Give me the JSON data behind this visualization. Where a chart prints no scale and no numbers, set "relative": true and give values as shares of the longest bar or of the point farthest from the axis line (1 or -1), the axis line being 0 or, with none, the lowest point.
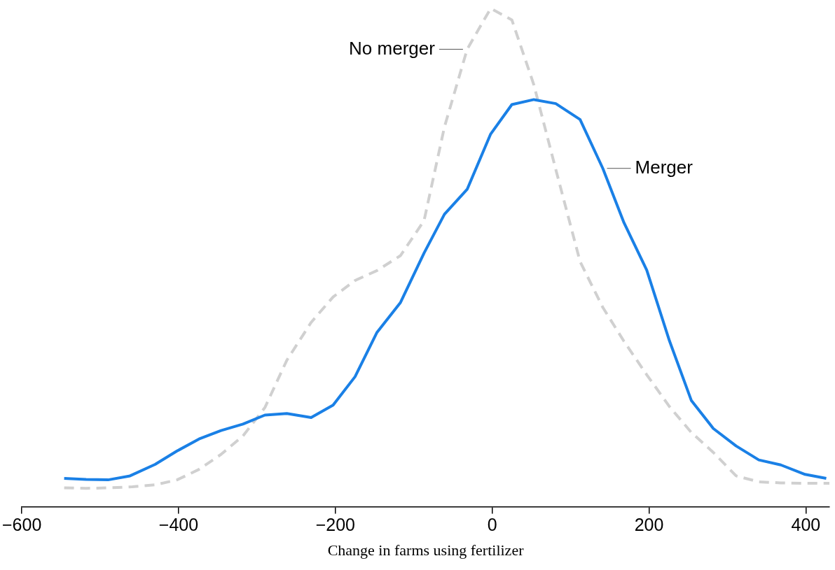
{
  "chart_data": {
    "type": "line",
    "relative": true,
    "xlabel": "Change in farms using fertilizer",
    "xlim": [
      -600,
      430
    ],
    "xticks": [
      {
        "value": -600,
        "label": "−600"
      },
      {
        "value": -400,
        "label": "−400"
      },
      {
        "value": -200,
        "label": "−200"
      },
      0,
      200,
      400
    ],
    "marker": "none",
    "grid": false,
    "legend": false,
    "series": [
      {
        "name": "Merger",
        "color": "#1a80e6",
        "line_style": "solid",
        "x": [
          -546,
          -518,
          -490,
          -462,
          -430,
          -402,
          -374,
          -346,
          -318,
          -290,
          -262,
          -231,
          -203,
          -175,
          -147,
          -117,
          -87,
          -61,
          -32,
          -2,
          25,
          53,
          81,
          112,
          141,
          168,
          197,
          226,
          254,
          282,
          311,
          340,
          368,
          399,
          426
        ],
        "values": [
          0.057,
          0.055,
          0.054,
          0.062,
          0.085,
          0.112,
          0.136,
          0.153,
          0.166,
          0.184,
          0.187,
          0.179,
          0.204,
          0.261,
          0.35,
          0.41,
          0.509,
          0.587,
          0.637,
          0.748,
          0.807,
          0.817,
          0.809,
          0.777,
          0.679,
          0.57,
          0.475,
          0.333,
          0.213,
          0.157,
          0.122,
          0.094,
          0.084,
          0.065,
          0.057
        ]
      },
      {
        "name": "No merger",
        "color": "#d0d0d0",
        "line_style": "dashed",
        "x": [
          -546,
          -518,
          -490,
          -459,
          -430,
          -402,
          -374,
          -346,
          -318,
          -290,
          -262,
          -231,
          -203,
          -175,
          -147,
          -117,
          -87,
          -61,
          -32,
          -2,
          25,
          53,
          81,
          112,
          141,
          168,
          197,
          226,
          254,
          282,
          311,
          340,
          368,
          399,
          430
        ],
        "values": [
          0.038,
          0.037,
          0.038,
          0.04,
          0.044,
          0.054,
          0.075,
          0.105,
          0.142,
          0.199,
          0.294,
          0.37,
          0.421,
          0.454,
          0.474,
          0.504,
          0.574,
          0.762,
          0.918,
          1,
          0.977,
          0.847,
          0.677,
          0.492,
          0.4,
          0.332,
          0.265,
          0.201,
          0.149,
          0.109,
          0.062,
          0.05,
          0.048,
          0.047,
          0.047
        ]
      }
    ]
  }
}
